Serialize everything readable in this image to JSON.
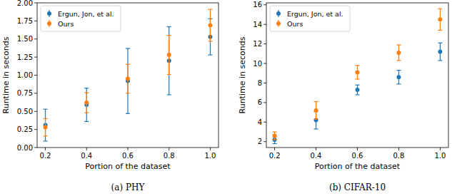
{
  "chart_data": [
    {
      "type": "scatter",
      "title": "(a) PHY",
      "x_label": "Portion of the dataset",
      "y_label": "Runtime in seconds",
      "x": [
        0.2,
        0.4,
        0.6,
        0.8,
        1.0
      ],
      "xlim": [
        0.16,
        1.04
      ],
      "xticks": [
        0.2,
        0.4,
        0.6,
        0.8,
        {
          "value": 1.0,
          "label": "1.0"
        }
      ],
      "ylim": [
        0,
        2.0
      ],
      "yticks": [
        {
          "value": 0,
          "label": "0.00"
        },
        0.25,
        {
          "value": 0.5,
          "label": "0.50"
        },
        0.75,
        {
          "value": 1.0,
          "label": "1.00"
        },
        1.25,
        {
          "value": 1.5,
          "label": "1.50"
        },
        1.75,
        {
          "value": 2.0,
          "label": "2.00"
        }
      ],
      "legend": "upper left",
      "series": [
        {
          "name": "Ergun, Jon, et al.",
          "color": "#1f77b4",
          "marker": "circle",
          "values": [
            0.31,
            0.59,
            0.92,
            1.2,
            1.53
          ],
          "errors": [
            0.22,
            0.23,
            0.45,
            0.47,
            0.25
          ]
        },
        {
          "name": "Ours",
          "color": "#ff7f0e",
          "marker": "circle",
          "values": [
            0.28,
            0.62,
            0.95,
            1.28,
            1.69
          ],
          "errors": [
            0.12,
            0.14,
            0.2,
            0.27,
            0.22
          ]
        }
      ]
    },
    {
      "type": "scatter",
      "title": "(b) CIFAR-10",
      "x_label": "Portion of the dataset",
      "y_label": "Runtime in seconds",
      "x": [
        0.2,
        0.4,
        0.6,
        0.8,
        1.0
      ],
      "xlim": [
        0.16,
        1.04
      ],
      "xticks": [
        0.2,
        0.4,
        0.6,
        0.8,
        {
          "value": 1.0,
          "label": "1.0"
        }
      ],
      "ylim": [
        1.4,
        16.2
      ],
      "yticks": [
        2,
        4,
        6,
        8,
        10,
        12,
        14,
        16
      ],
      "legend": "upper left",
      "series": [
        {
          "name": "Ergun, Jon, et al.",
          "color": "#1f77b4",
          "marker": "circle",
          "values": [
            2.2,
            4.2,
            7.3,
            8.6,
            11.2
          ],
          "errors": [
            0.4,
            0.9,
            0.5,
            0.7,
            0.9
          ]
        },
        {
          "name": "Ours",
          "color": "#ff7f0e",
          "marker": "circle",
          "values": [
            2.6,
            5.2,
            9.1,
            11.1,
            14.5
          ],
          "errors": [
            0.4,
            0.9,
            0.7,
            0.8,
            1.1
          ]
        }
      ]
    }
  ]
}
